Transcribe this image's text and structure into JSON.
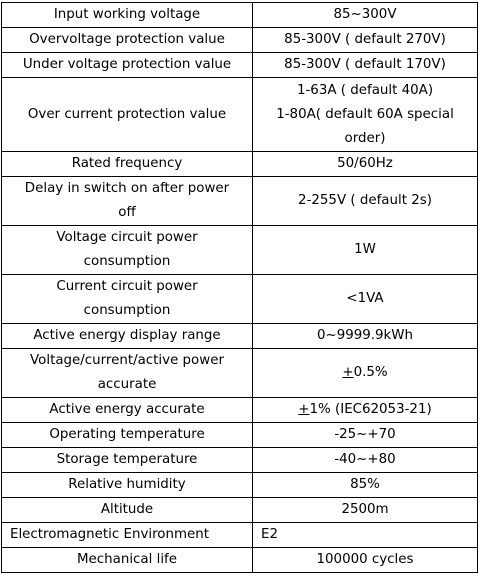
{
  "rows": [
    {
      "name": "Input working voltage",
      "value": "85~300V"
    },
    {
      "name": "Overvoltage protection value",
      "value": "85-300V ( default 270V)"
    },
    {
      "name": "Under voltage  protection  value",
      "value": "85-300V ( default 170V)"
    },
    {
      "name": "Over current  protection  value",
      "value_lines": [
        "1-63A ( default 40A)",
        "1-80A( default 60A special",
        "order)"
      ]
    },
    {
      "name": "Rated frequency",
      "value": "50/60Hz"
    },
    {
      "name_lines": [
        "Delay in switch on after power",
        "off"
      ],
      "value": "2-255V ( default 2s)"
    },
    {
      "name_lines": [
        "Voltage circuit power",
        "consumption"
      ],
      "value": "1W"
    },
    {
      "name_lines": [
        "Current circuit power",
        "consumption"
      ],
      "value": "<1VA"
    },
    {
      "name": "Active energy display range",
      "value": "0~9999.9kWh"
    },
    {
      "name_lines": [
        "Voltage/current/active power",
        "accurate"
      ],
      "value_pm": "+",
      "value": "0.5%"
    },
    {
      "name": "Active energy accurate",
      "value_pm": "+",
      "value": "1%  (IEC62053-21)"
    },
    {
      "name": "Operating temperature",
      "value": "-25~+70"
    },
    {
      "name": "Storage  temperature",
      "value": "-40~+80"
    },
    {
      "name": "Relative humidity",
      "value": "85%"
    },
    {
      "name": "Altitude",
      "value": "2500m"
    },
    {
      "name": "Electromagnetic Environment",
      "value": "E2"
    },
    {
      "name": "Mechanical life",
      "value": "100000  cycles"
    }
  ]
}
